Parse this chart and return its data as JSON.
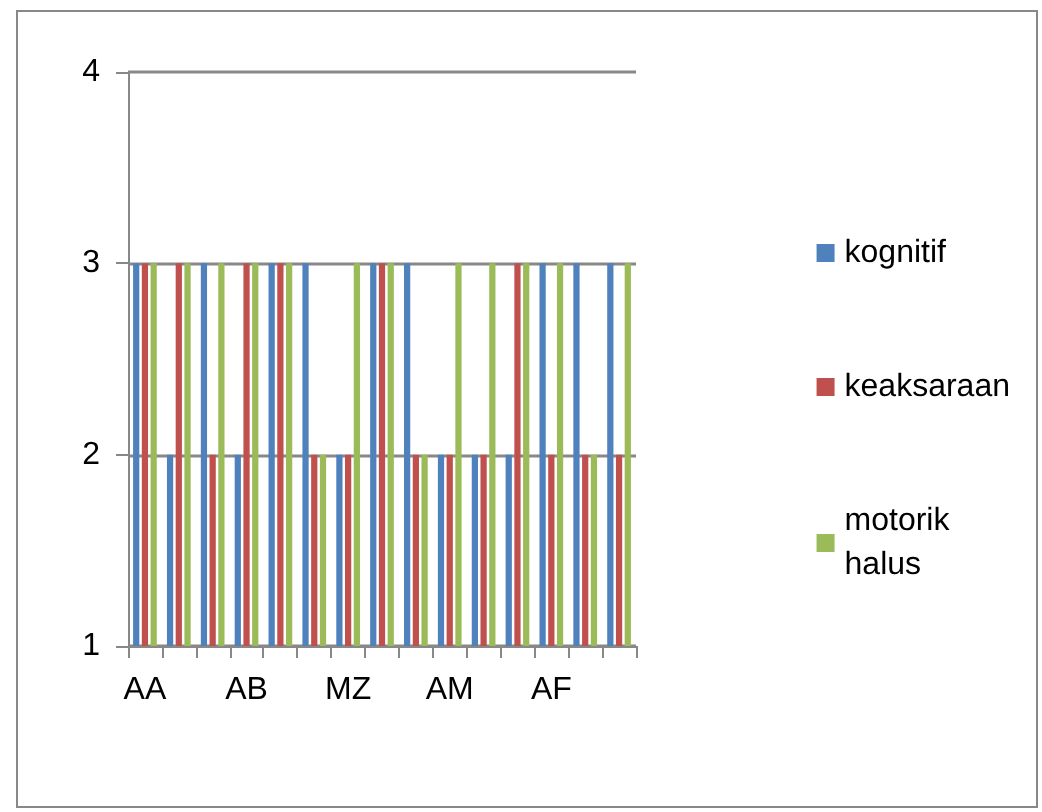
{
  "chart_data": {
    "type": "bar",
    "categories": [
      "AA",
      null,
      null,
      "AB",
      null,
      null,
      "MZ",
      null,
      null,
      "AM",
      null,
      null,
      "AF",
      null,
      null
    ],
    "series": [
      {
        "name": "kognitif",
        "color": "#4f81bd",
        "values": [
          3,
          2,
          3,
          2,
          3,
          3,
          2,
          3,
          3,
          2,
          2,
          2,
          3,
          3,
          3
        ]
      },
      {
        "name": "keaksaraan",
        "color": "#c0504d",
        "values": [
          3,
          3,
          2,
          3,
          3,
          2,
          2,
          3,
          2,
          2,
          2,
          3,
          2,
          2,
          2
        ]
      },
      {
        "name": "motorik\nhalus",
        "color": "#9bbb59",
        "values": [
          3,
          3,
          3,
          3,
          3,
          2,
          3,
          3,
          2,
          3,
          3,
          3,
          3,
          2,
          3
        ]
      }
    ],
    "ylim": [
      1,
      4
    ],
    "yticks": [
      1,
      2,
      3,
      4
    ],
    "grid": "y",
    "legend": "right"
  }
}
